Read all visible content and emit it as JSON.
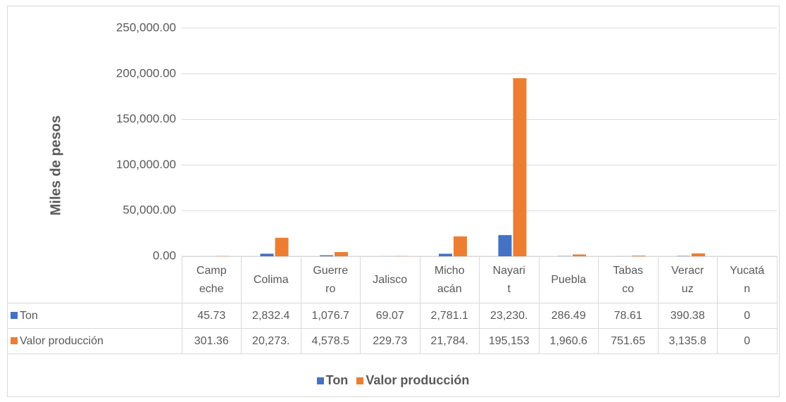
{
  "chart_data": {
    "type": "bar",
    "y_label": "Miles de pesos",
    "categories": [
      "Campeche",
      "Colima",
      "Guerrero",
      "Jalisco",
      "Michoacán",
      "Nayarit",
      "Puebla",
      "Tabasco",
      "Veracruz",
      "Yucatán"
    ],
    "series": [
      {
        "name": "Ton",
        "color": "#4472c4",
        "values": [
          45.73,
          2832.4,
          1076.7,
          69.07,
          2781.1,
          23230,
          286.49,
          78.61,
          390.38,
          0
        ],
        "value_labels": [
          "45.73",
          "2,832.4",
          "1,076.7",
          "69.07",
          "2,781.1",
          "23,230.",
          "286.49",
          "78.61",
          "390.38",
          "0"
        ]
      },
      {
        "name": "Valor producción",
        "color": "#ed7d31",
        "values": [
          301.36,
          20273,
          4578.5,
          229.73,
          21784,
          195153,
          1960.6,
          751.65,
          3135.8,
          0
        ],
        "value_labels": [
          "301.36",
          "20,273.",
          "4,578.5",
          "229.73",
          "21,784.",
          "195,153",
          "1,960.6",
          "751.65",
          "3,135.8",
          "0"
        ]
      }
    ],
    "ylim": [
      0,
      250000
    ],
    "yticks": [
      {
        "value": 0,
        "label": "0.00"
      },
      {
        "value": 50000,
        "label": "50,000.00"
      },
      {
        "value": 100000,
        "label": "100,000.00"
      },
      {
        "value": 150000,
        "label": "150,000.00"
      },
      {
        "value": 200000,
        "label": "200,000.00"
      },
      {
        "value": 250000,
        "label": "250,000.00"
      }
    ],
    "grid": true,
    "legend": "bottom"
  }
}
